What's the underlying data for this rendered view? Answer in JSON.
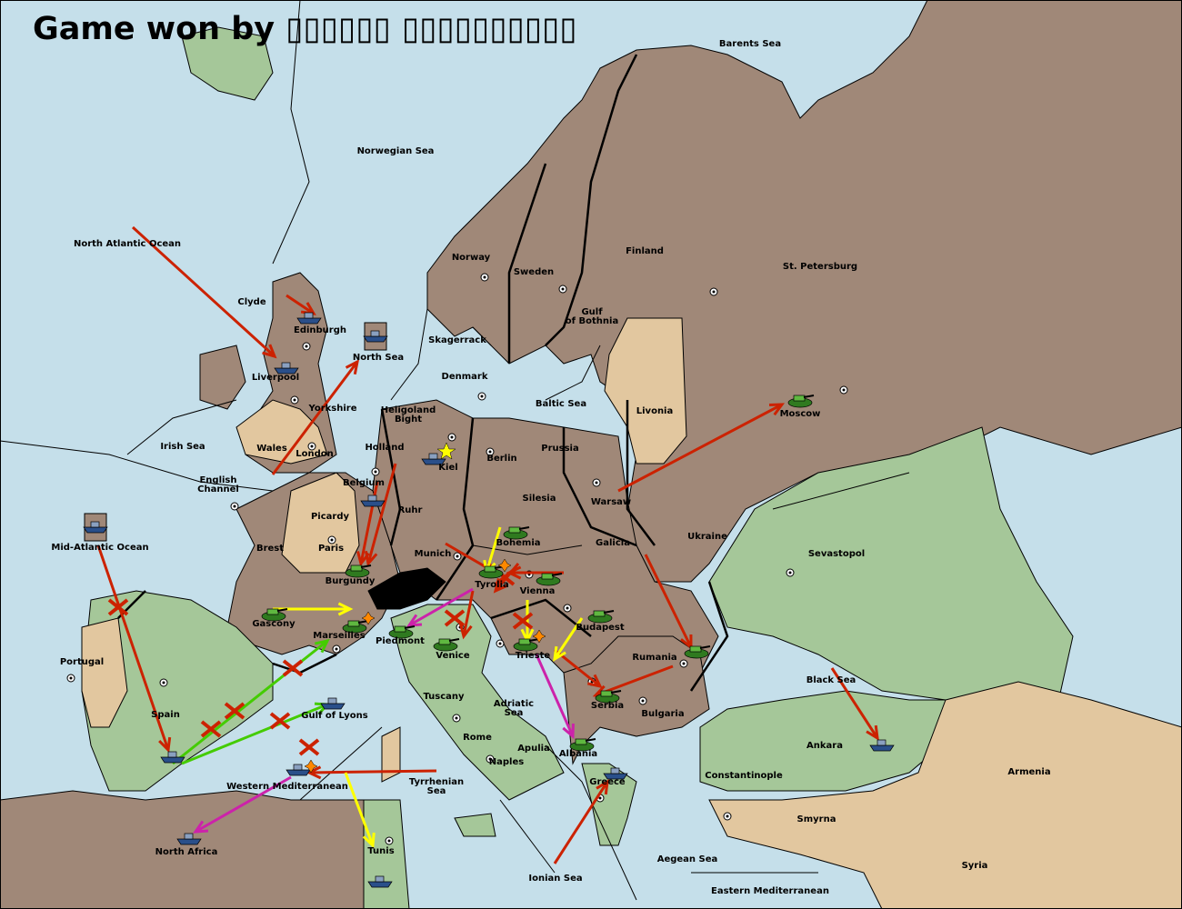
{
  "title": "Game won by ▯▯▯▯▯▯ ▯▯▯▯▯▯▯▯▯▯",
  "colors": {
    "sea": "#c5dfea",
    "power_brown": "#a08878",
    "power_green": "#a5c799",
    "neutral_tan": "#e2c79f",
    "impassable": "#000000",
    "move_arrow": "#cc2200",
    "support_green": "#44cc00",
    "convoy_yellow": "#ffff00",
    "retreat_magenta": "#cc22aa"
  },
  "territories": [
    "Barents Sea",
    "Norwegian Sea",
    "North Atlantic Ocean",
    "Norway",
    "Sweden",
    "Finland",
    "St. Petersburg",
    "Clyde",
    "Edinburgh",
    "Gulf of Bothnia",
    "Skagerrack",
    "North Sea",
    "Liverpool",
    "Denmark",
    "Baltic Sea",
    "Livonia",
    "Yorkshire",
    "Heligoland Bight",
    "Moscow",
    "Irish Sea",
    "Wales",
    "London",
    "Holland",
    "Kiel",
    "Berlin",
    "Prussia",
    "English Channel",
    "Belgium",
    "Warsaw",
    "Silesia",
    "Ruhr",
    "Picardy",
    "Ukraine",
    "Brest",
    "Paris",
    "Munich",
    "Bohemia",
    "Galicia",
    "Mid-Atlantic Ocean",
    "Sevastopol",
    "Burgundy",
    "Tyrolia",
    "Vienna",
    "Gascony",
    "Budapest",
    "Marseilles",
    "Piedmont",
    "Venice",
    "Trieste",
    "Rumania",
    "Portugal",
    "Black Sea",
    "Tuscany",
    "Adriatic Sea",
    "Serbia",
    "Bulgaria",
    "Spain",
    "Gulf of Lyons",
    "Rome",
    "Apulia",
    "Albania",
    "Ankara",
    "Naples",
    "Armenia",
    "Constantinople",
    "Tyrrhenian Sea",
    "Western Mediterranean",
    "Greece",
    "Smyrna",
    "North Africa",
    "Tunis",
    "Aegean Sea",
    "Syria",
    "Ionian Sea",
    "Eastern Mediterranean"
  ],
  "units": [
    {
      "type": "army",
      "location": "Moscow"
    },
    {
      "type": "army",
      "location": "Bohemia"
    },
    {
      "type": "army",
      "location": "Tyrolia"
    },
    {
      "type": "army",
      "location": "Vienna"
    },
    {
      "type": "army",
      "location": "Budapest"
    },
    {
      "type": "army",
      "location": "Trieste"
    },
    {
      "type": "army",
      "location": "Rumania"
    },
    {
      "type": "army",
      "location": "Serbia"
    },
    {
      "type": "army",
      "location": "Albania"
    },
    {
      "type": "army",
      "location": "Burgundy"
    },
    {
      "type": "army",
      "location": "Gascony"
    },
    {
      "type": "army",
      "location": "Marseilles"
    },
    {
      "type": "army",
      "location": "Piedmont"
    },
    {
      "type": "army",
      "location": "Venice"
    },
    {
      "type": "fleet",
      "location": "Edinburgh"
    },
    {
      "type": "fleet",
      "location": "Liverpool"
    },
    {
      "type": "fleet",
      "location": "Kiel"
    },
    {
      "type": "fleet",
      "location": "Belgium"
    },
    {
      "type": "fleet",
      "location": "Spain"
    },
    {
      "type": "fleet",
      "location": "Gulf of Lyons"
    },
    {
      "type": "fleet",
      "location": "Western Mediterranean"
    },
    {
      "type": "fleet",
      "location": "North Africa"
    },
    {
      "type": "fleet",
      "location": "Tunis"
    },
    {
      "type": "fleet",
      "location": "Greece"
    },
    {
      "type": "fleet",
      "location": "Black Sea"
    },
    {
      "type": "fleet",
      "location": "North Sea",
      "dislodged": true
    },
    {
      "type": "fleet",
      "location": "Mid-Atlantic Ocean",
      "dislodged": true
    }
  ]
}
